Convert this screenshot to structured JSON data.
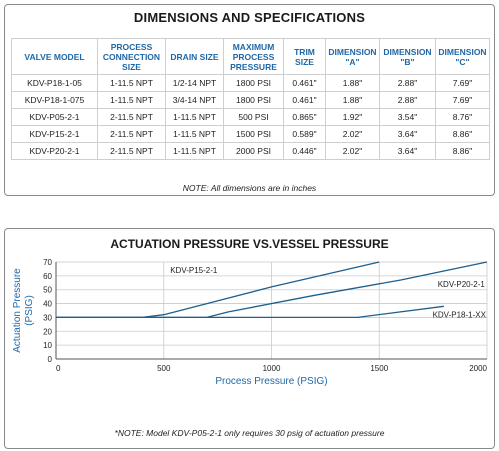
{
  "spec": {
    "title": "DIMENSIONS AND SPECIFICATIONS",
    "headers": [
      "VALVE MODEL",
      "PROCESS CONNECTION SIZE",
      "DRAIN SIZE",
      "MAXIMUM PROCESS PRESSURE",
      "TRIM SIZE",
      "DIMENSION \"A\"",
      "DIMENSION \"B\"",
      "DIMENSION \"C\""
    ],
    "rows": [
      [
        "KDV-P18-1-05",
        "1-11.5 NPT",
        "1/2-14 NPT",
        "1800 PSI",
        "0.461\"",
        "1.88\"",
        "2.88\"",
        "7.69\""
      ],
      [
        "KDV-P18-1-075",
        "1-11.5 NPT",
        "3/4-14 NPT",
        "1800 PSI",
        "0.461\"",
        "1.88\"",
        "2.88\"",
        "7.69\""
      ],
      [
        "KDV-P05-2-1",
        "2-11.5 NPT",
        "1-11.5 NPT",
        "500 PSI",
        "0.865\"",
        "1.92\"",
        "3.54\"",
        "8.76\""
      ],
      [
        "KDV-P15-2-1",
        "2-11.5 NPT",
        "1-11.5 NPT",
        "1500 PSI",
        "0.589\"",
        "2.02\"",
        "3.64\"",
        "8.86\""
      ],
      [
        "KDV-P20-2-1",
        "2-11.5 NPT",
        "1-11.5 NPT",
        "2000 PSI",
        "0.446\"",
        "2.02\"",
        "3.64\"",
        "8.86\""
      ]
    ],
    "note": "NOTE: All dimensions are in inches"
  },
  "chart_note": "*NOTE: Model KDV-P05-2-1 only requires 30 psig of actuation pressure",
  "colors": {
    "accent": "#1f67a6",
    "line": "#1d5f8f",
    "grid": "#c9c9c9"
  },
  "chart_data": {
    "type": "line",
    "title": "ACTUATION PRESSURE VS.VESSEL PRESSURE",
    "xlabel": "Process Pressure (PSIG)",
    "ylabel": "Actuation Pressure (PSIG)",
    "xlim": [
      0,
      2000
    ],
    "ylim": [
      0,
      70
    ],
    "xticks": [
      0,
      500,
      1000,
      1500,
      2000
    ],
    "yticks": [
      0,
      10,
      20,
      30,
      40,
      50,
      60,
      70
    ],
    "grid": true,
    "series": [
      {
        "name": "KDV-P15-2-1",
        "x": [
          0,
          400,
          500,
          1000,
          1500
        ],
        "y": [
          30,
          30,
          32,
          52,
          70
        ]
      },
      {
        "name": "KDV-P20-2-1",
        "x": [
          0,
          700,
          800,
          1200,
          1600,
          2000
        ],
        "y": [
          30,
          30,
          34,
          46,
          57,
          70
        ]
      },
      {
        "name": "KDV-P18-1-XX",
        "x": [
          0,
          1400,
          1800
        ],
        "y": [
          30,
          30,
          38
        ]
      }
    ]
  }
}
